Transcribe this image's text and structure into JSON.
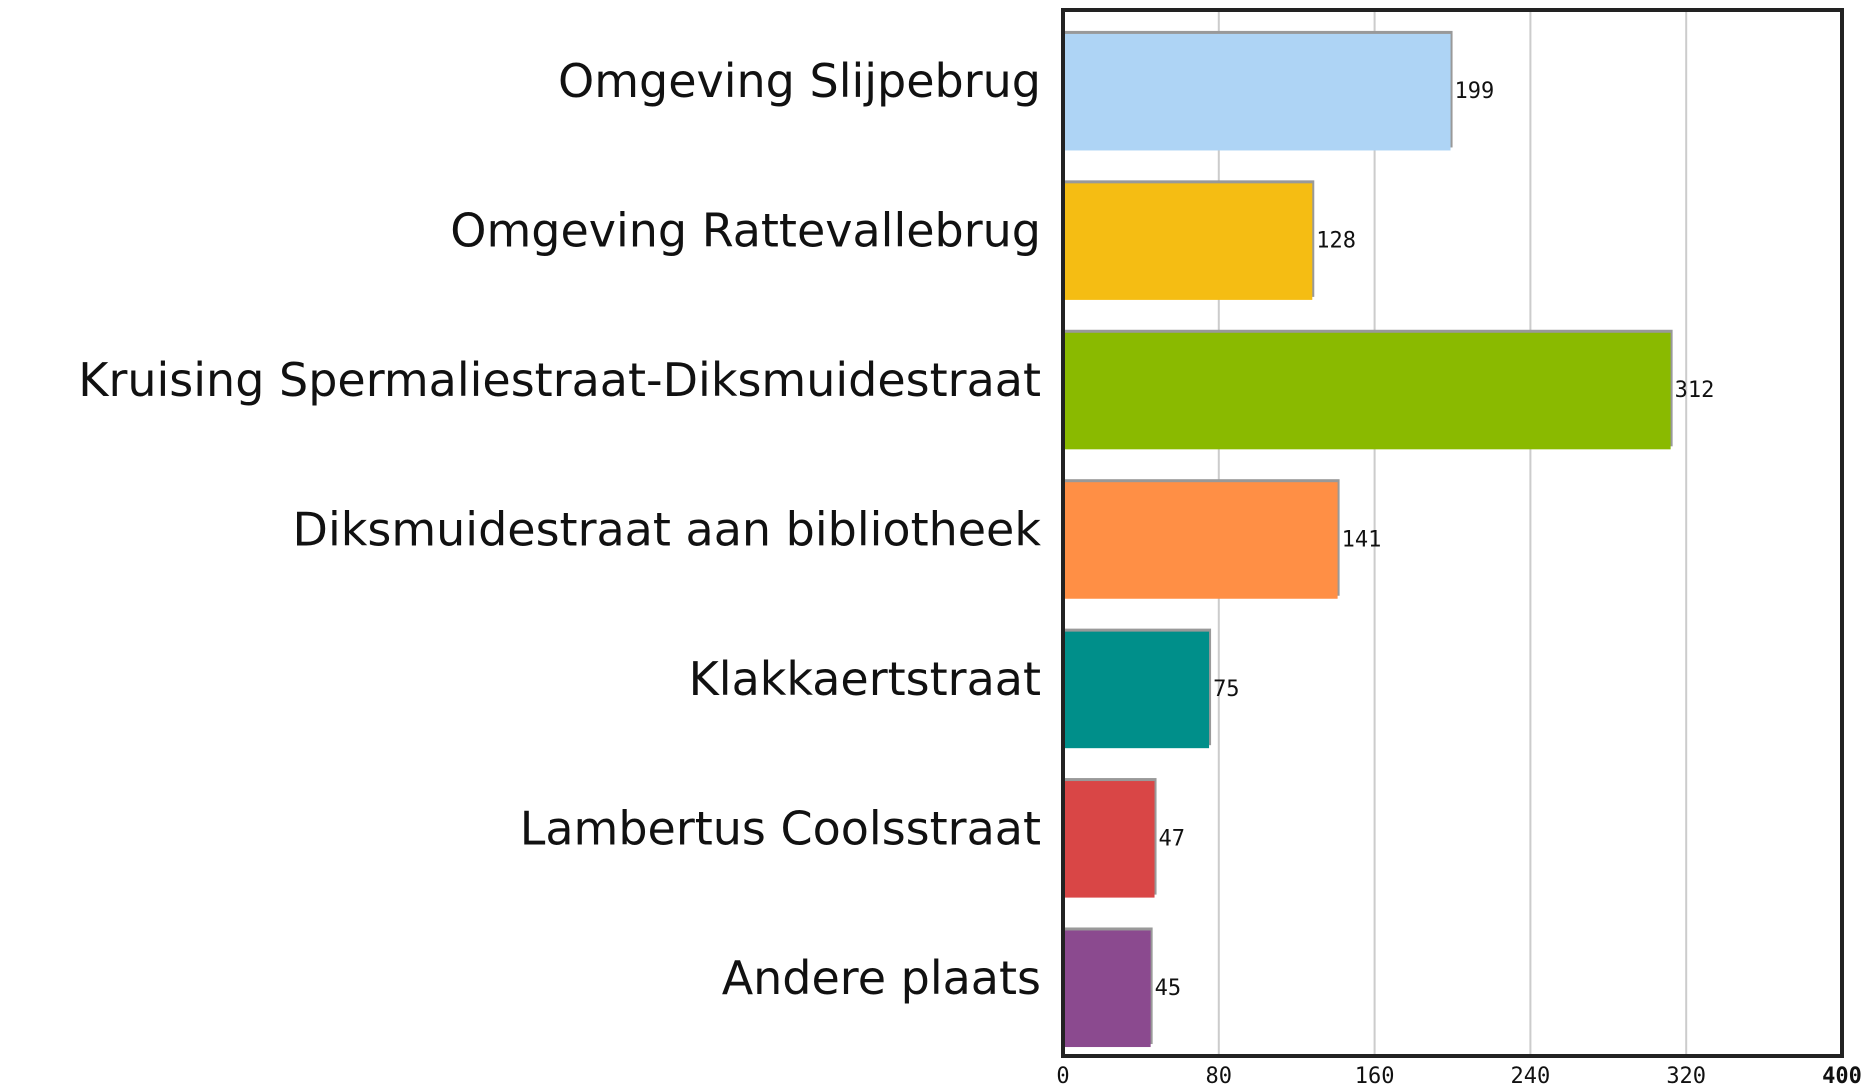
{
  "chart_data": {
    "type": "barh",
    "categories": [
      "Omgeving Slijpebrug",
      "Omgeving Rattevallebrug",
      "Kruising Spermaliestraat-Diksmuidestraat",
      "Diksmuidestraat aan bibliotheek",
      "Klakkaertstraat",
      "Lambertus Coolsstraat",
      "Andere plaats"
    ],
    "values": [
      199,
      128,
      312,
      141,
      75,
      47,
      45
    ],
    "colors": [
      "#aed4f5",
      "#f5bd13",
      "#8aba00",
      "#ff8f45",
      "#008f8a",
      "#d94646",
      "#8b4a8f"
    ],
    "xlim": [
      0,
      400
    ],
    "xticks": [
      0,
      80,
      160,
      240,
      320,
      400
    ],
    "grid": true
  }
}
